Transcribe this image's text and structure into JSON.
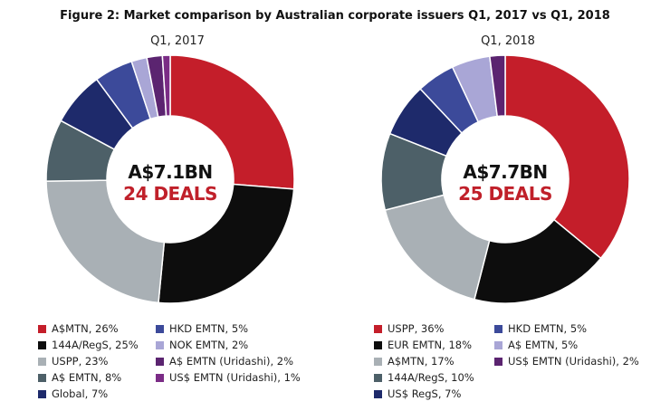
{
  "title": "Figure 2: Market comparison by Australian corporate issuers Q1, 2017 vs Q1, 2018",
  "chart_data": [
    {
      "type": "pie",
      "subtitle": "Q1, 2017",
      "center_amount": "A$7.1BN",
      "center_deals": "24 DEALS",
      "slices": [
        {
          "label": "A$MTN, 26%",
          "value": 26,
          "color": "#c41e2a"
        },
        {
          "label": "144A/RegS, 25%",
          "value": 25,
          "color": "#0d0d0d"
        },
        {
          "label": "USPP, 23%",
          "value": 23,
          "color": "#a9b0b5"
        },
        {
          "label": "A$ EMTN, 8%",
          "value": 8,
          "color": "#4d6068"
        },
        {
          "label": "Global, 7%",
          "value": 7,
          "color": "#1e2a6b"
        },
        {
          "label": "HKD EMTN, 5%",
          "value": 5,
          "color": "#3c4a9a"
        },
        {
          "label": "NOK EMTN, 2%",
          "value": 2,
          "color": "#a9a6d6"
        },
        {
          "label": "A$ EMTN (Uridashi), 2%",
          "value": 2,
          "color": "#5b2470"
        },
        {
          "label": "US$ EMTN (Uridashi), 1%",
          "value": 1,
          "color": "#7b2c86"
        }
      ]
    },
    {
      "type": "pie",
      "subtitle": "Q1, 2018",
      "center_amount": "A$7.7BN",
      "center_deals": "25 DEALS",
      "slices": [
        {
          "label": "USPP, 36%",
          "value": 36,
          "color": "#c41e2a"
        },
        {
          "label": "EUR EMTN, 18%",
          "value": 18,
          "color": "#0d0d0d"
        },
        {
          "label": "A$MTN, 17%",
          "value": 17,
          "color": "#a9b0b5"
        },
        {
          "label": "144A/RegS, 10%",
          "value": 10,
          "color": "#4d6068"
        },
        {
          "label": "US$ RegS, 7%",
          "value": 7,
          "color": "#1e2a6b"
        },
        {
          "label": "HKD EMTN, 5%",
          "value": 5,
          "color": "#3c4a9a"
        },
        {
          "label": "A$ EMTN, 5%",
          "value": 5,
          "color": "#a9a6d6"
        },
        {
          "label": "US$ EMTN (Uridashi), 2%",
          "value": 2,
          "color": "#5b2470"
        }
      ]
    }
  ]
}
